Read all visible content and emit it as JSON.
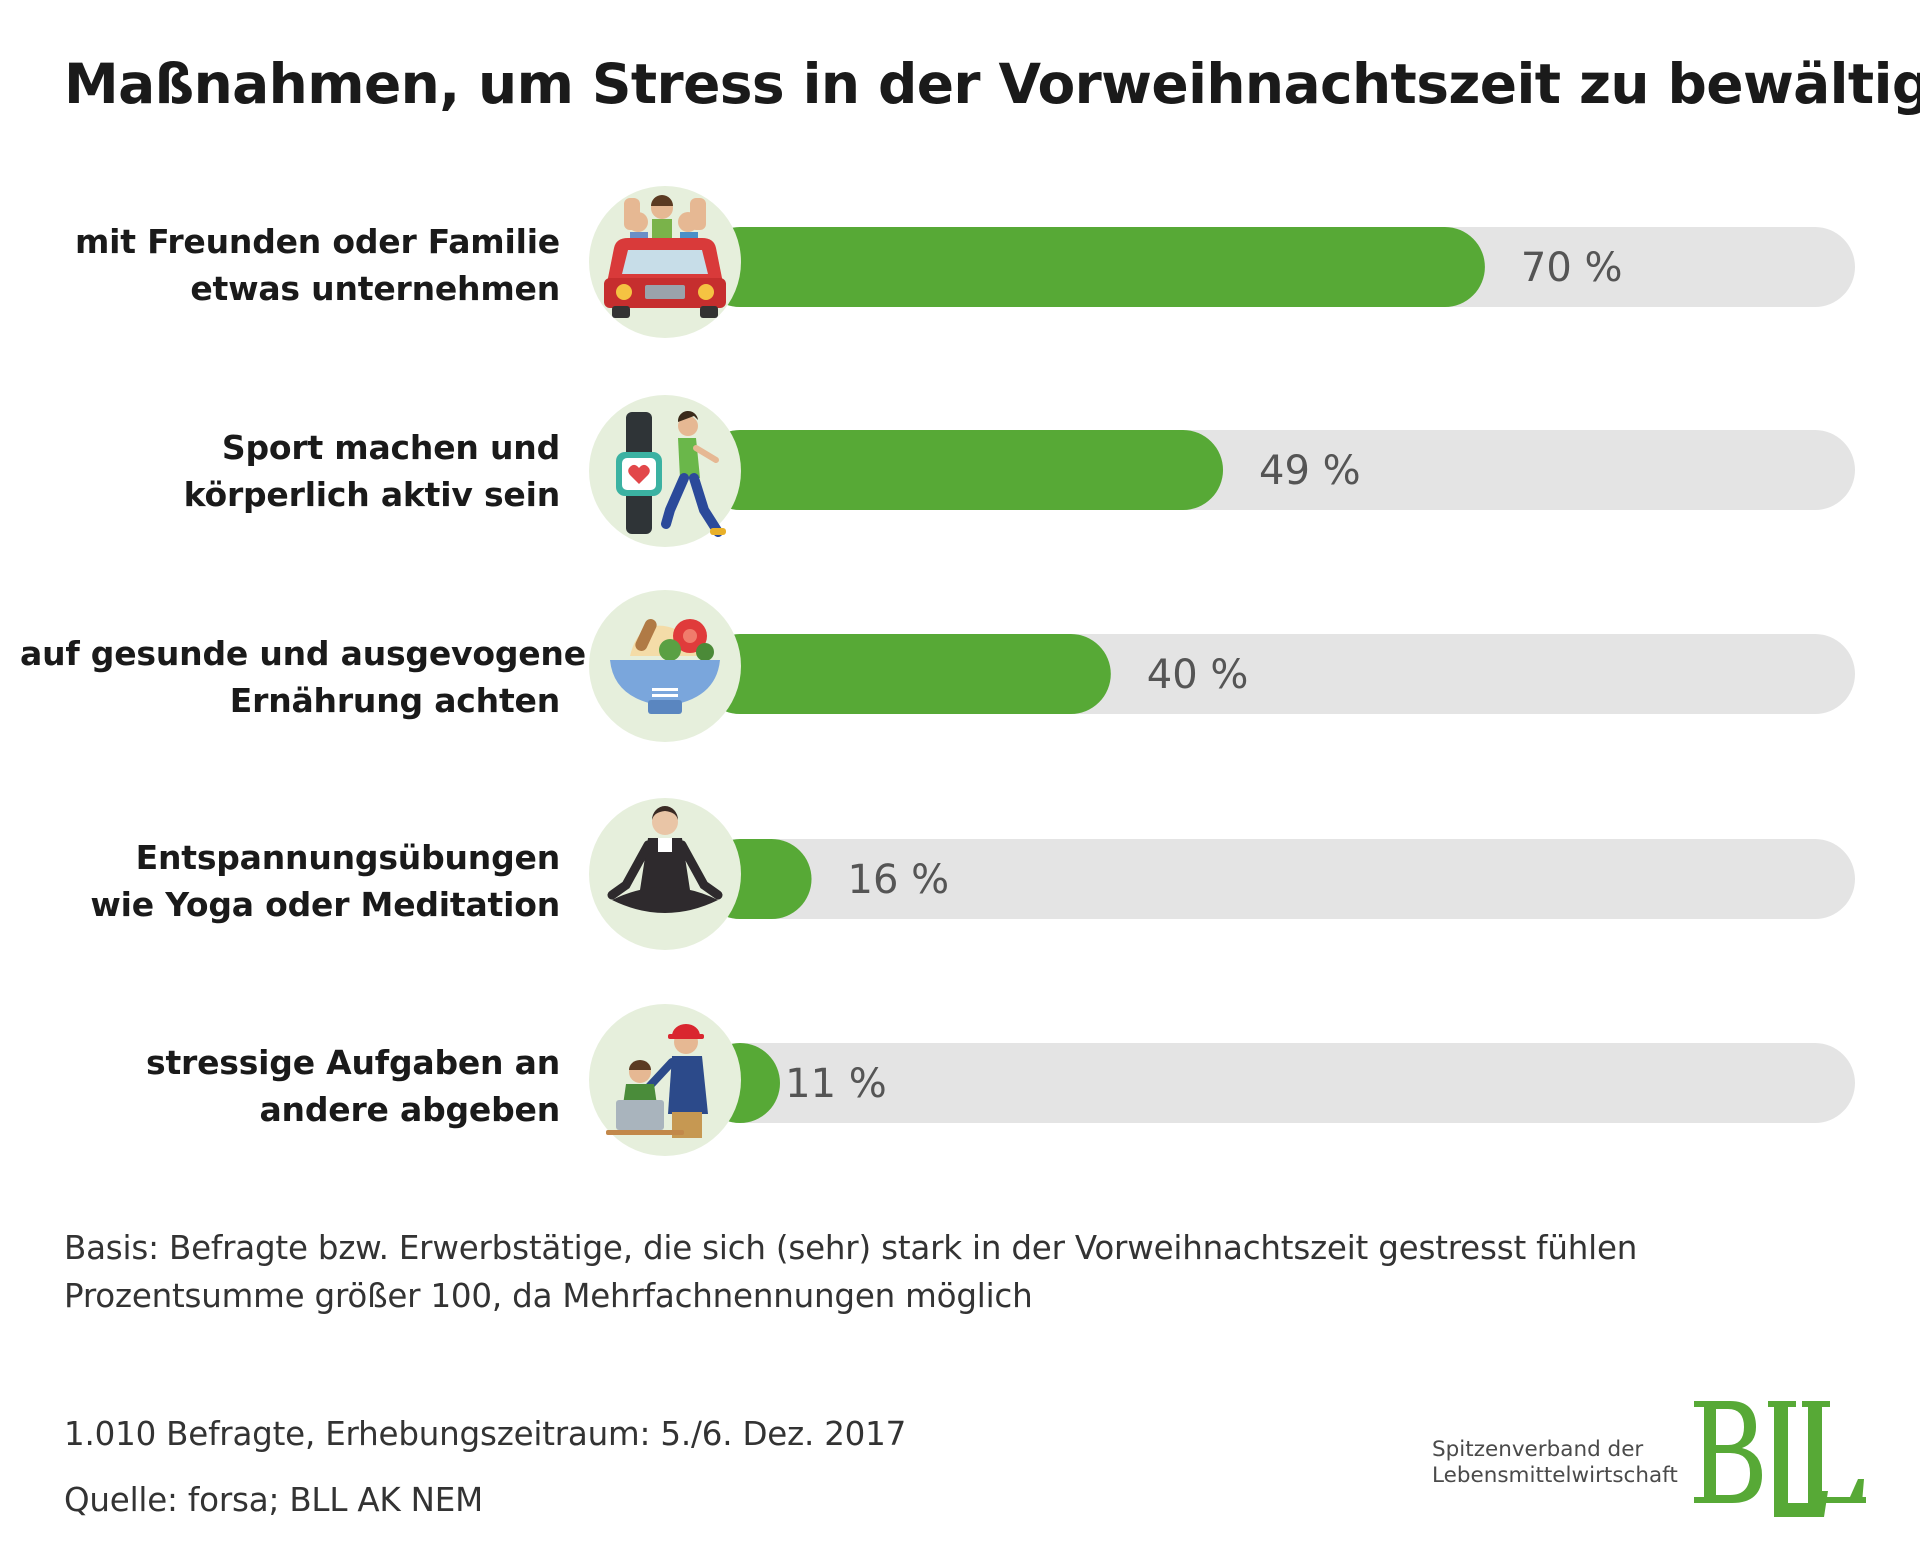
{
  "title": "Maßnahmen, um Stress in der Vorweihnachtszeit zu bewältigen",
  "chart_data": {
    "type": "bar",
    "orientation": "horizontal",
    "title": "Maßnahmen, um Stress in der Vorweihnachtszeit zu bewältigen",
    "categories": [
      "mit Freunden oder Familie etwas unternehmen",
      "Sport machen und körperlich aktiv sein",
      "auf gesunde und ausgevogene Ernährung achten",
      "Entspannungsübungen wie Yoga oder Meditation",
      "stressige Aufgaben an andere abgeben"
    ],
    "values": [
      70,
      49,
      40,
      16,
      11
    ],
    "value_labels": [
      "70 %",
      "49 %",
      "40 %",
      "16 %",
      "11 %"
    ],
    "xlim": [
      0,
      100
    ],
    "unit": "%",
    "grid": false,
    "legend": "none",
    "colors": {
      "bar": "#57a936",
      "track": "#e4e4e4",
      "icon_circle": "#e6efdc",
      "value_text": "#555555"
    }
  },
  "bars": [
    {
      "line1": "mit Freunden oder Familie",
      "line2": "etwas unternehmen",
      "icon": "friends-car-icon"
    },
    {
      "line1": "Sport machen und",
      "line2": "körperlich aktiv sein",
      "icon": "fitness-tracker-runner-icon"
    },
    {
      "line1": "auf gesunde und ausgevogene",
      "line2": "Ernährung achten",
      "icon": "healthy-food-bowl-icon"
    },
    {
      "line1": "Entspannungsübungen",
      "line2": "wie Yoga oder Meditation",
      "icon": "yoga-meditation-icon"
    },
    {
      "line1": "stressige Aufgaben an",
      "line2": "andere abgeben",
      "icon": "delegate-task-icon"
    }
  ],
  "notes": {
    "basis": "Basis: Befragte bzw. Erwerbstätige, die sich (sehr) stark in der Vorweihnachtszeit gestresst fühlen",
    "sum_note": "Prozentsumme größer 100, da Mehrfachnennungen möglich",
    "sample": "1.010 Befragte, Erhebungszeitraum: 5./6. Dez. 2017",
    "source": "Quelle: forsa; BLL AK NEM"
  },
  "logo": {
    "mark": "BLL",
    "tagline_line1": "Spitzenverband der",
    "tagline_line2": "Lebensmittelwirtschaft",
    "color": "#57a936"
  }
}
